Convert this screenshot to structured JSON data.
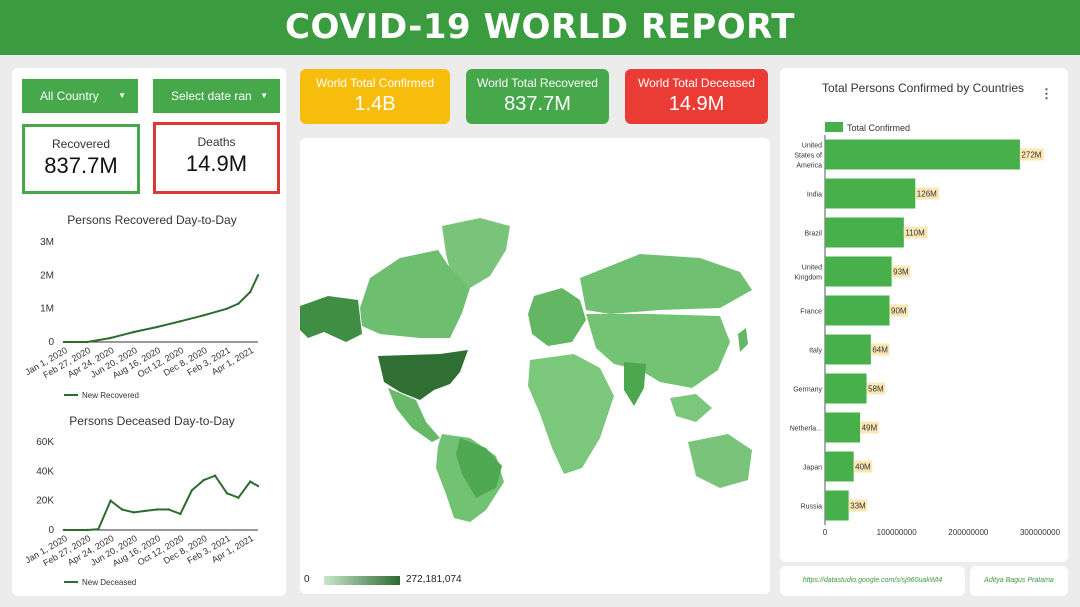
{
  "header": {
    "title": "COVID-19 WORLD REPORT"
  },
  "filters": {
    "country_label": "All Country",
    "date_label": "Select date range"
  },
  "left": {
    "recovered": {
      "label": "Recovered",
      "value": "837.7M"
    },
    "deaths": {
      "label": "Deaths",
      "value": "14.9M"
    }
  },
  "kpis": {
    "confirmed": {
      "label": "World Total Confirmed",
      "value": "1.4B",
      "color": "#f7bd0c"
    },
    "recovered": {
      "label": "World Total Recovered",
      "value": "837.7M",
      "color": "#47a84b"
    },
    "deceased": {
      "label": "World Total Deceased",
      "value": "14.9M",
      "color": "#ea3c35"
    }
  },
  "map": {
    "legend_min": "0",
    "legend_max": "272,181,074"
  },
  "footer": {
    "url": "https://datastudio.google.com/s/sj960uakWt4",
    "author": "Aditya Bagus Pratama"
  },
  "chart_data": [
    {
      "type": "line",
      "title": "Persons Recovered Day-to-Day",
      "legend": "New Recovered",
      "x_ticks": [
        "Jan 1, 2020",
        "Feb 27, 2020",
        "Apr 24, 2020",
        "Jun 20, 2020",
        "Aug 16, 2020",
        "Oct 12, 2020",
        "Dec 8, 2020",
        "Feb 3, 2021",
        "Apr 1, 2021"
      ],
      "y_ticks": [
        "0",
        "1M",
        "2M",
        "3M"
      ],
      "ylim": [
        0,
        3000000
      ],
      "x": [
        "Jan 1, 2020",
        "Feb 27, 2020",
        "Apr 24, 2020",
        "Jun 20, 2020",
        "Aug 16, 2020",
        "Oct 12, 2020",
        "Dec 8, 2020",
        "Feb 3, 2021",
        "Mar 3, 2021",
        "Apr 1, 2021",
        "Apr 20, 2021"
      ],
      "values": [
        0,
        0,
        120000,
        300000,
        450000,
        620000,
        800000,
        1000000,
        1150000,
        1500000,
        2000000
      ],
      "color": "#2e6b30"
    },
    {
      "type": "line",
      "title": "Persons Deceased Day-to-Day",
      "legend": "New Deceased",
      "x_ticks": [
        "Jan 1, 2020",
        "Feb 27, 2020",
        "Apr 24, 2020",
        "Jun 20, 2020",
        "Aug 16, 2020",
        "Oct 12, 2020",
        "Dec 8, 2020",
        "Feb 3, 2021",
        "Apr 1, 2021"
      ],
      "y_ticks": [
        "0",
        "20K",
        "40K",
        "60K"
      ],
      "ylim": [
        0,
        60000
      ],
      "x": [
        "Jan 1, 2020",
        "Feb 27, 2020",
        "Mar 25, 2020",
        "Apr 24, 2020",
        "May 22, 2020",
        "Jun 20, 2020",
        "Jul 18, 2020",
        "Aug 16, 2020",
        "Sep 13, 2020",
        "Oct 12, 2020",
        "Nov 9, 2020",
        "Dec 8, 2020",
        "Jan 5, 2021",
        "Feb 3, 2021",
        "Mar 3, 2021",
        "Apr 1, 2021",
        "Apr 20, 2021"
      ],
      "values": [
        0,
        0,
        500,
        20000,
        14000,
        12000,
        13000,
        14000,
        14000,
        11000,
        27000,
        34000,
        37000,
        25000,
        22000,
        33000,
        30000
      ],
      "color": "#2e6b30"
    },
    {
      "type": "bar",
      "orientation": "horizontal",
      "title": "Total Persons Confirmed by Countries",
      "legend": "Total Confirmed",
      "categories": [
        "United States of America",
        "India",
        "Brazil",
        "United Kingdom",
        "France",
        "Italy",
        "Germany",
        "Netherla...",
        "Japan",
        "Russia"
      ],
      "category_lines": [
        [
          "United",
          "States of",
          "America"
        ],
        [
          "India"
        ],
        [
          "Brazil"
        ],
        [
          "United",
          "Kingdom"
        ],
        [
          "France"
        ],
        [
          "Italy"
        ],
        [
          "Germany"
        ],
        [
          "Netherla..."
        ],
        [
          "Japan"
        ],
        [
          "Russia"
        ]
      ],
      "values": [
        272000000,
        126000000,
        110000000,
        93000000,
        90000000,
        64000000,
        58000000,
        49000000,
        40000000,
        33000000
      ],
      "labels": [
        "272M",
        "126M",
        "110M",
        "93M",
        "90M",
        "64M",
        "58M",
        "49M",
        "40M",
        "33M"
      ],
      "x_ticks": [
        "0",
        "100000000",
        "200000000",
        "300000000"
      ],
      "xlim": [
        0,
        300000000
      ],
      "color": "#47b04b"
    }
  ]
}
